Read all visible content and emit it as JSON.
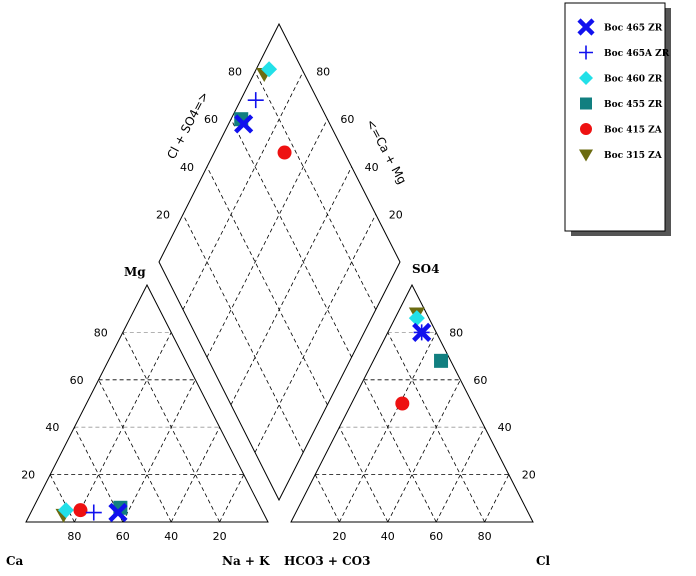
{
  "chart_data": {
    "type": "scatter",
    "subtype": "piper-trilinear",
    "title": "",
    "corners": {
      "cation_ca": "Ca",
      "cation_mg": "Mg",
      "cation_na_k": "Na + K",
      "anion_hco3_co3": "HCO3 + CO3",
      "anion_so4": "SO4",
      "anion_cl": "Cl"
    },
    "diamond_axes": {
      "left": "Cl + SO4=>",
      "right": "<=Ca + Mg"
    },
    "ticks": [
      "20",
      "40",
      "60",
      "80"
    ],
    "legend_position": "top-right",
    "series": [
      {
        "name": "Boc 465 ZR",
        "marker": "x-icon",
        "color": "#1111ee",
        "cation": {
          "mg": 4,
          "na_k": 36
        },
        "anion": {
          "so4": 80,
          "cl": 14
        },
        "diamond": {
          "cl_so4": 94,
          "ca_mg": 64
        }
      },
      {
        "name": "Boc 465A ZR",
        "marker": "plus-icon",
        "color": "#1111ee",
        "cation": {
          "mg": 4,
          "na_k": 26
        },
        "anion": {
          "so4": 80,
          "cl": 14
        },
        "diamond": {
          "cl_so4": 94,
          "ca_mg": 74
        }
      },
      {
        "name": "Boc 460 ZR",
        "marker": "diamond-icon",
        "color": "#22e0e8",
        "cation": {
          "mg": 5,
          "na_k": 14
        },
        "anion": {
          "so4": 86,
          "cl": 9
        },
        "diamond": {
          "cl_so4": 95,
          "ca_mg": 86
        }
      },
      {
        "name": "Boc 455 ZR",
        "marker": "square-icon",
        "color": "#117f80",
        "cation": {
          "mg": 6,
          "na_k": 36
        },
        "anion": {
          "so4": 68,
          "cl": 28
        },
        "diamond": {
          "cl_so4": 96,
          "ca_mg": 64
        }
      },
      {
        "name": "Boc 415 ZA",
        "marker": "circle-icon",
        "color": "#ee1111",
        "cation": {
          "mg": 5,
          "na_k": 20
        },
        "anion": {
          "so4": 50,
          "cl": 21
        },
        "diamond": {
          "cl_so4": 71,
          "ca_mg": 75
        }
      },
      {
        "name": "Boc 315 ZA",
        "marker": "triangle-icon",
        "color": "#6b6b10",
        "cation": {
          "mg": 3,
          "na_k": 14
        },
        "anion": {
          "so4": 88,
          "cl": 8
        },
        "diamond": {
          "cl_so4": 96,
          "ca_mg": 83
        }
      }
    ]
  }
}
